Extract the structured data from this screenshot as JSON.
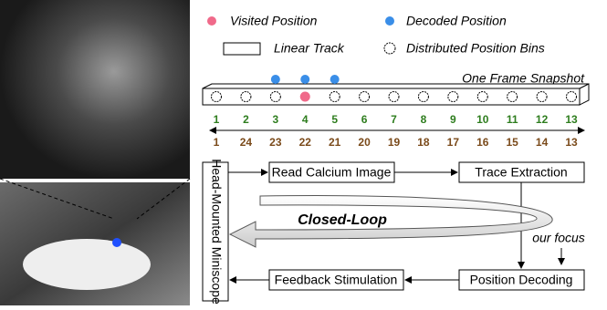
{
  "legend": {
    "visited": "Visited Position",
    "decoded": "Decoded Position",
    "track": "Linear Track",
    "bins": "Distributed Position Bins"
  },
  "snapshot_label": "One Frame Snapshot",
  "track": {
    "forward": [
      1,
      2,
      3,
      4,
      5,
      6,
      7,
      8,
      9,
      10,
      11,
      12,
      13
    ],
    "backward": [
      1,
      24,
      23,
      22,
      21,
      20,
      19,
      18,
      17,
      16,
      15,
      14,
      13
    ]
  },
  "flow": {
    "miniscope": "Head-Mounted Miniscope",
    "read": "Read Calcium Image",
    "trace": "Trace Extraction",
    "decoding": "Position Decoding",
    "feedback": "Feedback Stimulation",
    "loop": "Closed-Loop",
    "focus": "our focus"
  }
}
